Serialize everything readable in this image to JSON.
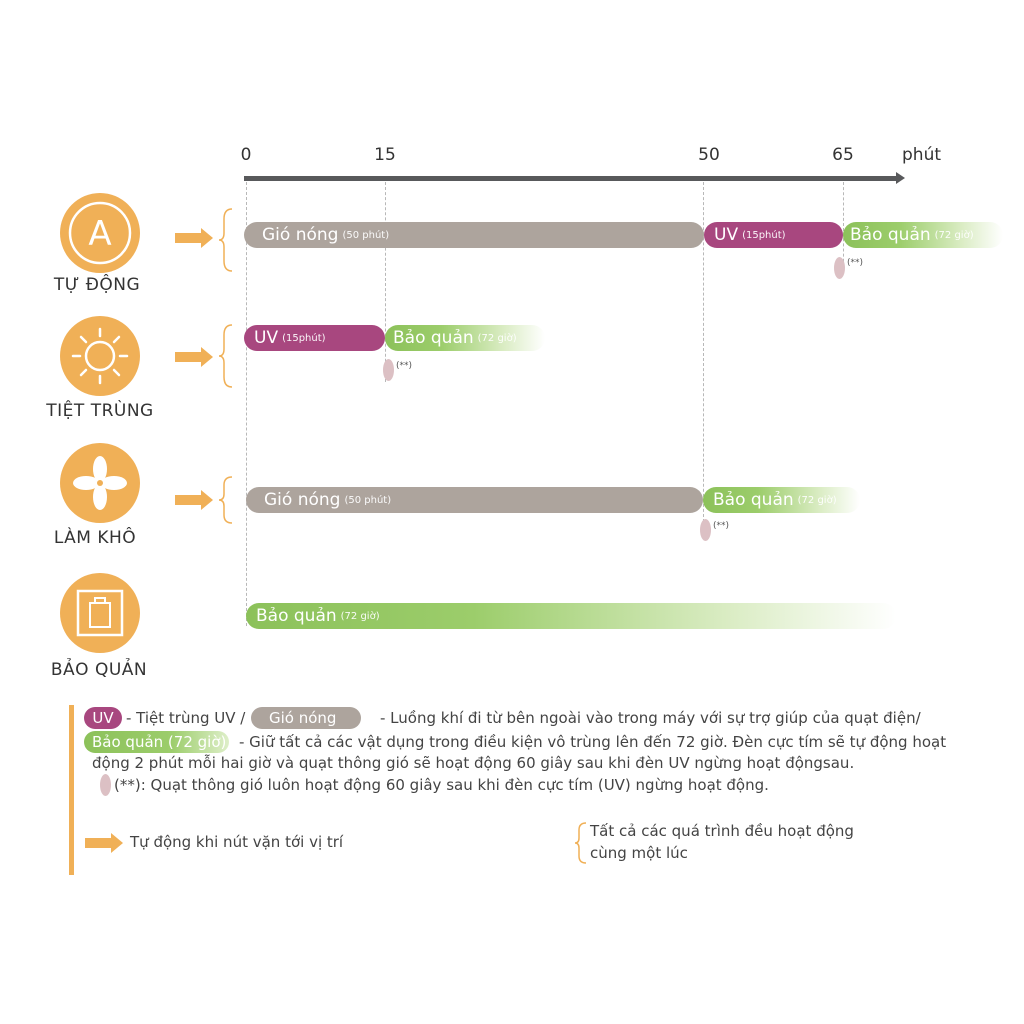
{
  "axis": {
    "ticks": [
      "0",
      "15",
      "50",
      "65"
    ],
    "unit": "phút"
  },
  "modes": [
    {
      "label": "TỰ ĐỘNG",
      "icon": "letter-a-icon",
      "icon_text": "A"
    },
    {
      "label": "TIỆT TRÙNG",
      "icon": "sun-icon"
    },
    {
      "label": "LÀM KHÔ",
      "icon": "fan-icon"
    },
    {
      "label": "BẢO QUẢN",
      "icon": "storage-box-icon"
    }
  ],
  "bars": {
    "hot": {
      "label": "Gió nóng",
      "note": "(50 phút)"
    },
    "uv": {
      "label": "UV",
      "note": "(15phút)"
    },
    "store": {
      "label": "Bảo quản",
      "note": "(72 giờ)"
    }
  },
  "fan_note": "(**)",
  "legend": {
    "uv_chip": "UV",
    "uv_text": "- Tiệt trùng UV /",
    "hot_chip": "Gió nóng",
    "hot_text": "-  Luồng khí đi từ bên ngoài vào trong máy với sự trợ giúp của quạt điện/",
    "store_chip": "Bảo quản (72 giờ)",
    "store_text_1": "- Giữ tất cả các vật dụng trong điều kiện vô trùng lên đến 72 giờ. Đèn cực tím sẽ tự động hoạt",
    "store_text_2": "động 2 phút mỗi hai giờ và quạt thông gió sẽ hoạt động 60 giây sau khi đèn UV ngừng hoạt độngsau.",
    "fan_text": "(**): Quạt thông gió luôn hoạt động 60 giây sau khi đèn cực tím (UV) ngừng hoạt động.",
    "arrow_text": "Tự động khi nút vặn tới vị trí",
    "brace_text_1": "Tất cả các quá trình đều hoạt động",
    "brace_text_2": "cùng một lúc"
  },
  "colors": {
    "orange": "#f0b057",
    "uv": "#a8477f",
    "hot": "#ada49d",
    "store": "#8cc15a",
    "axis": "#58595b"
  }
}
